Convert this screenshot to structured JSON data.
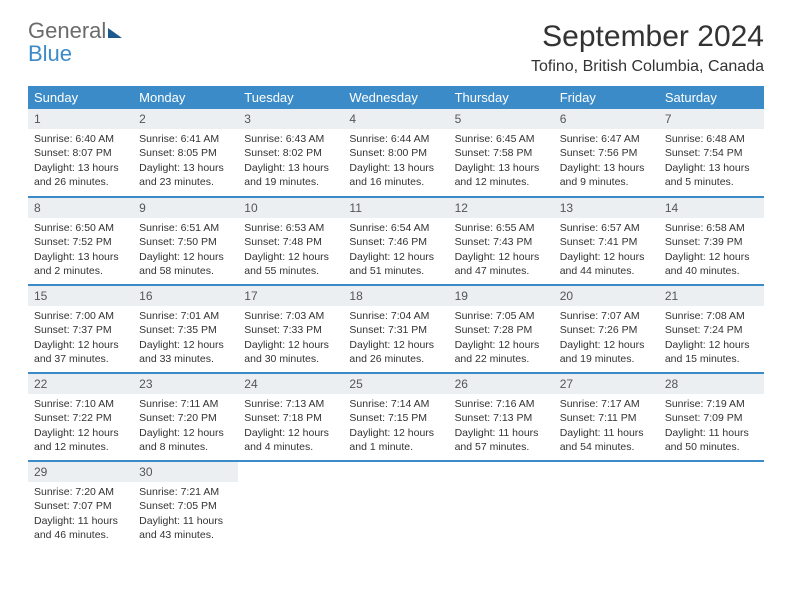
{
  "logo": {
    "word1": "General",
    "word2": "Blue"
  },
  "title": "September 2024",
  "location": "Tofino, British Columbia, Canada",
  "colors": {
    "accent": "#3b8bc9",
    "daynum_bg": "#eceff1",
    "text": "#333333",
    "logo_gray": "#6b6b6b",
    "logo_blue": "#3b8bc9"
  },
  "day_headers": [
    "Sunday",
    "Monday",
    "Tuesday",
    "Wednesday",
    "Thursday",
    "Friday",
    "Saturday"
  ],
  "weeks": [
    [
      {
        "n": "1",
        "sunrise": "Sunrise: 6:40 AM",
        "sunset": "Sunset: 8:07 PM",
        "daylight": "Daylight: 13 hours and 26 minutes."
      },
      {
        "n": "2",
        "sunrise": "Sunrise: 6:41 AM",
        "sunset": "Sunset: 8:05 PM",
        "daylight": "Daylight: 13 hours and 23 minutes."
      },
      {
        "n": "3",
        "sunrise": "Sunrise: 6:43 AM",
        "sunset": "Sunset: 8:02 PM",
        "daylight": "Daylight: 13 hours and 19 minutes."
      },
      {
        "n": "4",
        "sunrise": "Sunrise: 6:44 AM",
        "sunset": "Sunset: 8:00 PM",
        "daylight": "Daylight: 13 hours and 16 minutes."
      },
      {
        "n": "5",
        "sunrise": "Sunrise: 6:45 AM",
        "sunset": "Sunset: 7:58 PM",
        "daylight": "Daylight: 13 hours and 12 minutes."
      },
      {
        "n": "6",
        "sunrise": "Sunrise: 6:47 AM",
        "sunset": "Sunset: 7:56 PM",
        "daylight": "Daylight: 13 hours and 9 minutes."
      },
      {
        "n": "7",
        "sunrise": "Sunrise: 6:48 AM",
        "sunset": "Sunset: 7:54 PM",
        "daylight": "Daylight: 13 hours and 5 minutes."
      }
    ],
    [
      {
        "n": "8",
        "sunrise": "Sunrise: 6:50 AM",
        "sunset": "Sunset: 7:52 PM",
        "daylight": "Daylight: 13 hours and 2 minutes."
      },
      {
        "n": "9",
        "sunrise": "Sunrise: 6:51 AM",
        "sunset": "Sunset: 7:50 PM",
        "daylight": "Daylight: 12 hours and 58 minutes."
      },
      {
        "n": "10",
        "sunrise": "Sunrise: 6:53 AM",
        "sunset": "Sunset: 7:48 PM",
        "daylight": "Daylight: 12 hours and 55 minutes."
      },
      {
        "n": "11",
        "sunrise": "Sunrise: 6:54 AM",
        "sunset": "Sunset: 7:46 PM",
        "daylight": "Daylight: 12 hours and 51 minutes."
      },
      {
        "n": "12",
        "sunrise": "Sunrise: 6:55 AM",
        "sunset": "Sunset: 7:43 PM",
        "daylight": "Daylight: 12 hours and 47 minutes."
      },
      {
        "n": "13",
        "sunrise": "Sunrise: 6:57 AM",
        "sunset": "Sunset: 7:41 PM",
        "daylight": "Daylight: 12 hours and 44 minutes."
      },
      {
        "n": "14",
        "sunrise": "Sunrise: 6:58 AM",
        "sunset": "Sunset: 7:39 PM",
        "daylight": "Daylight: 12 hours and 40 minutes."
      }
    ],
    [
      {
        "n": "15",
        "sunrise": "Sunrise: 7:00 AM",
        "sunset": "Sunset: 7:37 PM",
        "daylight": "Daylight: 12 hours and 37 minutes."
      },
      {
        "n": "16",
        "sunrise": "Sunrise: 7:01 AM",
        "sunset": "Sunset: 7:35 PM",
        "daylight": "Daylight: 12 hours and 33 minutes."
      },
      {
        "n": "17",
        "sunrise": "Sunrise: 7:03 AM",
        "sunset": "Sunset: 7:33 PM",
        "daylight": "Daylight: 12 hours and 30 minutes."
      },
      {
        "n": "18",
        "sunrise": "Sunrise: 7:04 AM",
        "sunset": "Sunset: 7:31 PM",
        "daylight": "Daylight: 12 hours and 26 minutes."
      },
      {
        "n": "19",
        "sunrise": "Sunrise: 7:05 AM",
        "sunset": "Sunset: 7:28 PM",
        "daylight": "Daylight: 12 hours and 22 minutes."
      },
      {
        "n": "20",
        "sunrise": "Sunrise: 7:07 AM",
        "sunset": "Sunset: 7:26 PM",
        "daylight": "Daylight: 12 hours and 19 minutes."
      },
      {
        "n": "21",
        "sunrise": "Sunrise: 7:08 AM",
        "sunset": "Sunset: 7:24 PM",
        "daylight": "Daylight: 12 hours and 15 minutes."
      }
    ],
    [
      {
        "n": "22",
        "sunrise": "Sunrise: 7:10 AM",
        "sunset": "Sunset: 7:22 PM",
        "daylight": "Daylight: 12 hours and 12 minutes."
      },
      {
        "n": "23",
        "sunrise": "Sunrise: 7:11 AM",
        "sunset": "Sunset: 7:20 PM",
        "daylight": "Daylight: 12 hours and 8 minutes."
      },
      {
        "n": "24",
        "sunrise": "Sunrise: 7:13 AM",
        "sunset": "Sunset: 7:18 PM",
        "daylight": "Daylight: 12 hours and 4 minutes."
      },
      {
        "n": "25",
        "sunrise": "Sunrise: 7:14 AM",
        "sunset": "Sunset: 7:15 PM",
        "daylight": "Daylight: 12 hours and 1 minute."
      },
      {
        "n": "26",
        "sunrise": "Sunrise: 7:16 AM",
        "sunset": "Sunset: 7:13 PM",
        "daylight": "Daylight: 11 hours and 57 minutes."
      },
      {
        "n": "27",
        "sunrise": "Sunrise: 7:17 AM",
        "sunset": "Sunset: 7:11 PM",
        "daylight": "Daylight: 11 hours and 54 minutes."
      },
      {
        "n": "28",
        "sunrise": "Sunrise: 7:19 AM",
        "sunset": "Sunset: 7:09 PM",
        "daylight": "Daylight: 11 hours and 50 minutes."
      }
    ],
    [
      {
        "n": "29",
        "sunrise": "Sunrise: 7:20 AM",
        "sunset": "Sunset: 7:07 PM",
        "daylight": "Daylight: 11 hours and 46 minutes."
      },
      {
        "n": "30",
        "sunrise": "Sunrise: 7:21 AM",
        "sunset": "Sunset: 7:05 PM",
        "daylight": "Daylight: 11 hours and 43 minutes."
      },
      null,
      null,
      null,
      null,
      null
    ]
  ]
}
